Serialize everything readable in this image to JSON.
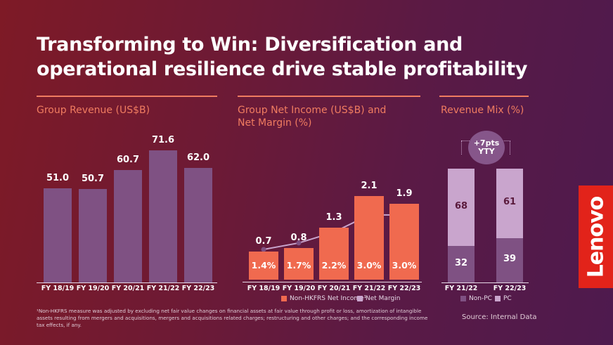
{
  "title": "Transforming to Win: Diversification and operational resilience drive stable profitability",
  "footnote": "¹Non-HKFRS measure was adjusted by excluding net fair value changes on financial assets at fair value through profit or loss, amortization of intangible assets resulting from mergers and acquisitions, mergers and acquisitions related charges; restructuring and other charges; and the corresponding income tax effects, if any.",
  "source": "Source: Internal Data",
  "logo": "Lenovo",
  "colors": {
    "revenue": "#7f5183",
    "net_income": "#f06a4f",
    "margin_line": "#c9a5cd",
    "margin_dot": "#7f5183",
    "non_pc": "#7f5183",
    "pc": "#c9a5cd"
  },
  "chart_data": [
    {
      "type": "bar",
      "title": "Group Revenue (US$B)",
      "categories": [
        "FY 18/19",
        "FY 19/20",
        "FY 20/21",
        "FY 21/22",
        "FY 22/23"
      ],
      "values": [
        51.0,
        50.7,
        60.7,
        71.6,
        62.0
      ],
      "labels": [
        "51.0",
        "50.7",
        "60.7",
        "71.6",
        "62.0"
      ]
    },
    {
      "type": "bar",
      "title": "Group Net Income (US$B) and Net Margin (%)",
      "categories": [
        "FY 18/19",
        "FY 19/20",
        "FY 20/21",
        "FY 21/22",
        "FY 22/23"
      ],
      "series": [
        {
          "name": "Non-HKFRS Net Income¹",
          "values": [
            0.7,
            0.8,
            1.3,
            2.1,
            1.9
          ],
          "labels": [
            "0.7",
            "0.8",
            "1.3",
            "2.1",
            "1.9"
          ]
        },
        {
          "name": "Net Margin",
          "type": "line",
          "values": [
            1.4,
            1.7,
            2.2,
            3.0,
            3.0
          ],
          "labels": [
            "1.4%",
            "1.7%",
            "2.2%",
            "3.0%",
            "3.0%"
          ]
        }
      ]
    },
    {
      "type": "bar",
      "stacked": true,
      "title": "Revenue Mix (%)",
      "categories": [
        "FY 21/22",
        "FY 22/23"
      ],
      "series": [
        {
          "name": "Non-PC",
          "values": [
            32,
            39
          ]
        },
        {
          "name": "PC",
          "values": [
            68,
            61
          ]
        }
      ],
      "annotation": "+7pts YTY"
    }
  ]
}
